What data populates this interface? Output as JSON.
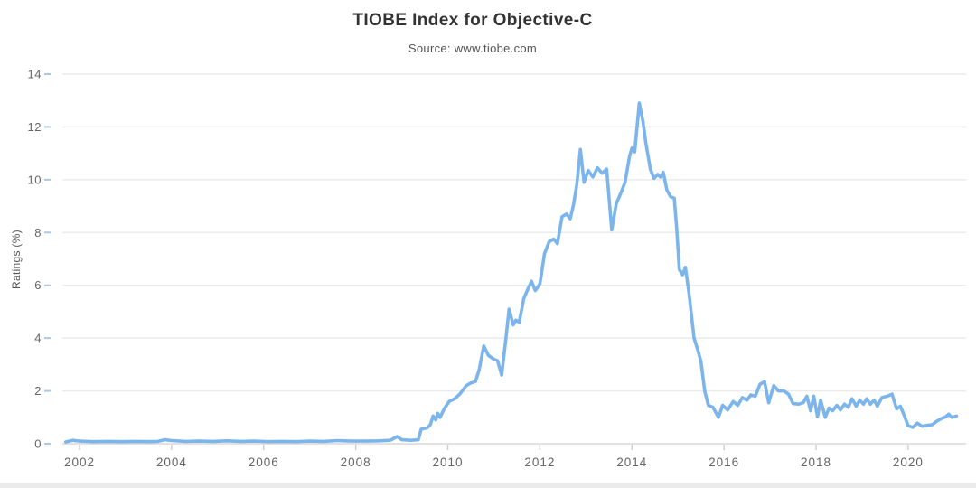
{
  "chart": {
    "title": "TIOBE Index for Objective-C",
    "subtitle": "Source: www.tiobe.com",
    "y_axis_title": "Ratings (%)"
  },
  "colors": {
    "line": "#7cb5ec",
    "grid": "#ebebeb",
    "axis_line": "#d9d9d9",
    "x_tick": "#cccccc",
    "y_tick": "#a9c9ec",
    "label": "#666666"
  },
  "chart_data": {
    "type": "line",
    "title": "TIOBE Index for Objective-C",
    "subtitle": "Source: www.tiobe.com",
    "xlabel": "",
    "ylabel": "Ratings (%)",
    "x_ticks": [
      2002,
      2004,
      2006,
      2008,
      2010,
      2012,
      2014,
      2016,
      2018,
      2020
    ],
    "y_ticks": [
      0,
      2,
      4,
      6,
      8,
      10,
      12,
      14
    ],
    "xlim": [
      2001.63,
      2021.26
    ],
    "ylim": [
      0,
      14
    ],
    "grid": true,
    "legend": false,
    "series": [
      {
        "name": "Objective-C",
        "points": [
          [
            2001.7,
            0.07
          ],
          [
            2001.85,
            0.13
          ],
          [
            2002.0,
            0.1
          ],
          [
            2002.3,
            0.08
          ],
          [
            2002.6,
            0.09
          ],
          [
            2002.9,
            0.08
          ],
          [
            2003.2,
            0.09
          ],
          [
            2003.5,
            0.08
          ],
          [
            2003.7,
            0.09
          ],
          [
            2003.85,
            0.15
          ],
          [
            2004.0,
            0.12
          ],
          [
            2004.3,
            0.09
          ],
          [
            2004.6,
            0.1
          ],
          [
            2004.9,
            0.09
          ],
          [
            2005.2,
            0.11
          ],
          [
            2005.5,
            0.09
          ],
          [
            2005.8,
            0.1
          ],
          [
            2006.1,
            0.08
          ],
          [
            2006.4,
            0.09
          ],
          [
            2006.7,
            0.08
          ],
          [
            2007.0,
            0.1
          ],
          [
            2007.3,
            0.09
          ],
          [
            2007.6,
            0.12
          ],
          [
            2007.9,
            0.1
          ],
          [
            2008.2,
            0.1
          ],
          [
            2008.5,
            0.11
          ],
          [
            2008.75,
            0.13
          ],
          [
            2008.9,
            0.27
          ],
          [
            2009.0,
            0.15
          ],
          [
            2009.2,
            0.13
          ],
          [
            2009.36,
            0.15
          ],
          [
            2009.42,
            0.55
          ],
          [
            2009.55,
            0.6
          ],
          [
            2009.62,
            0.72
          ],
          [
            2009.68,
            1.05
          ],
          [
            2009.74,
            0.9
          ],
          [
            2009.78,
            1.15
          ],
          [
            2009.83,
            1.0
          ],
          [
            2009.93,
            1.35
          ],
          [
            2010.03,
            1.6
          ],
          [
            2010.15,
            1.7
          ],
          [
            2010.27,
            1.9
          ],
          [
            2010.4,
            2.2
          ],
          [
            2010.5,
            2.3
          ],
          [
            2010.6,
            2.35
          ],
          [
            2010.68,
            2.8
          ],
          [
            2010.78,
            3.7
          ],
          [
            2010.88,
            3.35
          ],
          [
            2011.0,
            3.2
          ],
          [
            2011.08,
            3.15
          ],
          [
            2011.17,
            2.6
          ],
          [
            2011.27,
            4.1
          ],
          [
            2011.33,
            5.1
          ],
          [
            2011.42,
            4.5
          ],
          [
            2011.48,
            4.68
          ],
          [
            2011.55,
            4.6
          ],
          [
            2011.65,
            5.5
          ],
          [
            2011.75,
            5.9
          ],
          [
            2011.82,
            6.15
          ],
          [
            2011.9,
            5.8
          ],
          [
            2012.0,
            6.05
          ],
          [
            2012.1,
            7.2
          ],
          [
            2012.2,
            7.65
          ],
          [
            2012.3,
            7.75
          ],
          [
            2012.38,
            7.58
          ],
          [
            2012.48,
            8.6
          ],
          [
            2012.58,
            8.7
          ],
          [
            2012.66,
            8.52
          ],
          [
            2012.73,
            9.05
          ],
          [
            2012.8,
            9.8
          ],
          [
            2012.88,
            11.15
          ],
          [
            2012.96,
            9.9
          ],
          [
            2013.05,
            10.35
          ],
          [
            2013.15,
            10.1
          ],
          [
            2013.25,
            10.45
          ],
          [
            2013.35,
            10.25
          ],
          [
            2013.45,
            10.4
          ],
          [
            2013.56,
            8.1
          ],
          [
            2013.66,
            9.1
          ],
          [
            2013.76,
            9.5
          ],
          [
            2013.85,
            9.9
          ],
          [
            2013.95,
            10.9
          ],
          [
            2014.0,
            11.2
          ],
          [
            2014.06,
            11.05
          ],
          [
            2014.16,
            12.9
          ],
          [
            2014.24,
            12.2
          ],
          [
            2014.3,
            11.4
          ],
          [
            2014.4,
            10.4
          ],
          [
            2014.48,
            10.05
          ],
          [
            2014.56,
            10.2
          ],
          [
            2014.62,
            10.1
          ],
          [
            2014.68,
            10.28
          ],
          [
            2014.76,
            9.6
          ],
          [
            2014.84,
            9.35
          ],
          [
            2014.92,
            9.3
          ],
          [
            2014.97,
            8.2
          ],
          [
            2015.03,
            6.6
          ],
          [
            2015.1,
            6.4
          ],
          [
            2015.16,
            6.68
          ],
          [
            2015.24,
            5.7
          ],
          [
            2015.35,
            4.0
          ],
          [
            2015.44,
            3.5
          ],
          [
            2015.5,
            3.1
          ],
          [
            2015.58,
            2.0
          ],
          [
            2015.66,
            1.45
          ],
          [
            2015.76,
            1.38
          ],
          [
            2015.88,
            1.0
          ],
          [
            2015.97,
            1.45
          ],
          [
            2016.08,
            1.28
          ],
          [
            2016.2,
            1.6
          ],
          [
            2016.3,
            1.45
          ],
          [
            2016.4,
            1.75
          ],
          [
            2016.5,
            1.65
          ],
          [
            2016.58,
            1.85
          ],
          [
            2016.68,
            1.8
          ],
          [
            2016.78,
            2.25
          ],
          [
            2016.88,
            2.35
          ],
          [
            2016.97,
            1.55
          ],
          [
            2017.08,
            2.2
          ],
          [
            2017.18,
            2.0
          ],
          [
            2017.3,
            2.0
          ],
          [
            2017.4,
            1.88
          ],
          [
            2017.5,
            1.52
          ],
          [
            2017.62,
            1.5
          ],
          [
            2017.72,
            1.55
          ],
          [
            2017.8,
            1.8
          ],
          [
            2017.88,
            1.25
          ],
          [
            2017.95,
            1.8
          ],
          [
            2018.03,
            1.02
          ],
          [
            2018.1,
            1.65
          ],
          [
            2018.2,
            1.0
          ],
          [
            2018.28,
            1.35
          ],
          [
            2018.36,
            1.25
          ],
          [
            2018.45,
            1.45
          ],
          [
            2018.53,
            1.28
          ],
          [
            2018.62,
            1.5
          ],
          [
            2018.7,
            1.38
          ],
          [
            2018.78,
            1.7
          ],
          [
            2018.87,
            1.42
          ],
          [
            2018.95,
            1.65
          ],
          [
            2019.03,
            1.5
          ],
          [
            2019.1,
            1.7
          ],
          [
            2019.18,
            1.5
          ],
          [
            2019.26,
            1.65
          ],
          [
            2019.33,
            1.42
          ],
          [
            2019.43,
            1.75
          ],
          [
            2019.55,
            1.8
          ],
          [
            2019.65,
            1.88
          ],
          [
            2019.75,
            1.32
          ],
          [
            2019.83,
            1.42
          ],
          [
            2019.92,
            1.05
          ],
          [
            2020.0,
            0.68
          ],
          [
            2020.1,
            0.62
          ],
          [
            2020.2,
            0.78
          ],
          [
            2020.3,
            0.66
          ],
          [
            2020.42,
            0.7
          ],
          [
            2020.52,
            0.72
          ],
          [
            2020.62,
            0.85
          ],
          [
            2020.72,
            0.95
          ],
          [
            2020.82,
            1.02
          ],
          [
            2020.88,
            1.12
          ],
          [
            2020.95,
            1.0
          ],
          [
            2021.05,
            1.05
          ]
        ]
      }
    ]
  }
}
